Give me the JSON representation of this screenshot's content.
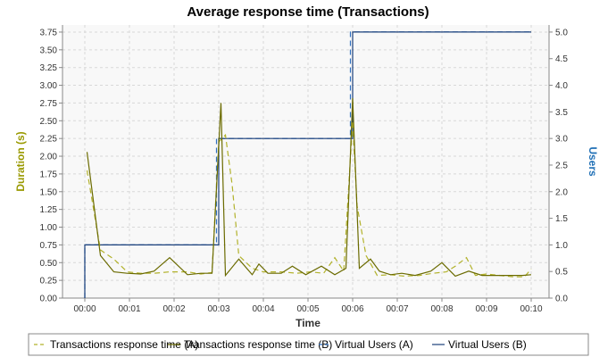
{
  "chart_data": {
    "type": "line",
    "title": "Average response time (Transactions)",
    "xlabel": "Time",
    "ylabel_left": "Duration (s)",
    "ylabel_right": "Users",
    "x_range_minutes": [
      0,
      10
    ],
    "x_ticks": [
      {
        "value": 0,
        "label": "00:00"
      },
      {
        "value": 1,
        "label": "00:01"
      },
      {
        "value": 2,
        "label": "00:02"
      },
      {
        "value": 3,
        "label": "00:03"
      },
      {
        "value": 4,
        "label": "00:04"
      },
      {
        "value": 5,
        "label": "00:05"
      },
      {
        "value": 6,
        "label": "00:06"
      },
      {
        "value": 7,
        "label": "00:07"
      },
      {
        "value": 8,
        "label": "00:08"
      },
      {
        "value": 9,
        "label": "00:09"
      },
      {
        "value": 10,
        "label": "00:10"
      }
    ],
    "y_left_range": [
      0,
      3.85
    ],
    "y_left_ticks": [
      {
        "value": 0,
        "label": "0.00"
      },
      {
        "value": 0.25,
        "label": "0.25"
      },
      {
        "value": 0.5,
        "label": "0.50"
      },
      {
        "value": 0.75,
        "label": "0.75"
      },
      {
        "value": 1.0,
        "label": "1.00"
      },
      {
        "value": 1.25,
        "label": "1.25"
      },
      {
        "value": 1.5,
        "label": "1.50"
      },
      {
        "value": 1.75,
        "label": "1.75"
      },
      {
        "value": 2.0,
        "label": "2.00"
      },
      {
        "value": 2.25,
        "label": "2.25"
      },
      {
        "value": 2.5,
        "label": "2.50"
      },
      {
        "value": 2.75,
        "label": "2.75"
      },
      {
        "value": 3.0,
        "label": "3.00"
      },
      {
        "value": 3.25,
        "label": "3.25"
      },
      {
        "value": 3.5,
        "label": "3.50"
      },
      {
        "value": 3.75,
        "label": "3.75"
      }
    ],
    "y_right_range": [
      0,
      5.133
    ],
    "y_right_ticks": [
      {
        "value": 0,
        "label": "0.0"
      },
      {
        "value": 0.5,
        "label": "0.5"
      },
      {
        "value": 1.0,
        "label": "1.0"
      },
      {
        "value": 1.5,
        "label": "1.5"
      },
      {
        "value": 2.0,
        "label": "2.0"
      },
      {
        "value": 2.5,
        "label": "2.5"
      },
      {
        "value": 3.0,
        "label": "3.0"
      },
      {
        "value": 3.5,
        "label": "3.5"
      },
      {
        "value": 4.0,
        "label": "4.0"
      },
      {
        "value": 4.5,
        "label": "4.5"
      },
      {
        "value": 5.0,
        "label": "5.0"
      }
    ],
    "grid": true,
    "legend_position": "bottom",
    "colors": {
      "left_axis": "#999900",
      "right_axis": "#1f6fb5",
      "plot_bg": "#f8f8f8",
      "grid": "#d8d8d8"
    },
    "series": [
      {
        "name": "Transactions response time (A)",
        "axis": "left",
        "style": "dashed",
        "color": "#b2b22b",
        "points": [
          [
            0.05,
            1.8
          ],
          [
            0.35,
            0.68
          ],
          [
            0.65,
            0.55
          ],
          [
            0.95,
            0.37
          ],
          [
            1.25,
            0.35
          ],
          [
            1.55,
            0.35
          ],
          [
            1.9,
            0.37
          ],
          [
            2.3,
            0.37
          ],
          [
            2.6,
            0.34
          ],
          [
            2.85,
            0.36
          ],
          [
            3.0,
            2.2
          ],
          [
            3.15,
            2.3
          ],
          [
            3.3,
            1.6
          ],
          [
            3.45,
            0.6
          ],
          [
            3.75,
            0.42
          ],
          [
            4.0,
            0.37
          ],
          [
            4.4,
            0.37
          ],
          [
            4.75,
            0.35
          ],
          [
            5.05,
            0.37
          ],
          [
            5.35,
            0.35
          ],
          [
            5.6,
            0.57
          ],
          [
            5.8,
            0.38
          ],
          [
            6.0,
            2.5
          ],
          [
            6.1,
            1.3
          ],
          [
            6.3,
            0.6
          ],
          [
            6.55,
            0.32
          ],
          [
            6.85,
            0.33
          ],
          [
            7.15,
            0.31
          ],
          [
            7.5,
            0.32
          ],
          [
            7.8,
            0.35
          ],
          [
            8.1,
            0.37
          ],
          [
            8.3,
            0.45
          ],
          [
            8.55,
            0.57
          ],
          [
            8.75,
            0.32
          ],
          [
            9.0,
            0.34
          ],
          [
            9.3,
            0.32
          ],
          [
            9.6,
            0.3
          ],
          [
            9.85,
            0.3
          ],
          [
            10.0,
            0.41
          ]
        ]
      },
      {
        "name": "Transactions response time (B)",
        "axis": "left",
        "style": "solid",
        "color": "#6b6b00",
        "points": [
          [
            0.05,
            2.06
          ],
          [
            0.35,
            0.6
          ],
          [
            0.65,
            0.37
          ],
          [
            0.95,
            0.35
          ],
          [
            1.25,
            0.34
          ],
          [
            1.55,
            0.38
          ],
          [
            1.9,
            0.57
          ],
          [
            2.3,
            0.33
          ],
          [
            2.6,
            0.35
          ],
          [
            2.85,
            0.35
          ],
          [
            3.05,
            2.75
          ],
          [
            3.15,
            0.32
          ],
          [
            3.45,
            0.55
          ],
          [
            3.75,
            0.33
          ],
          [
            3.9,
            0.48
          ],
          [
            4.1,
            0.35
          ],
          [
            4.4,
            0.35
          ],
          [
            4.65,
            0.45
          ],
          [
            4.95,
            0.33
          ],
          [
            5.3,
            0.45
          ],
          [
            5.6,
            0.33
          ],
          [
            5.85,
            0.42
          ],
          [
            6.0,
            2.82
          ],
          [
            6.15,
            0.42
          ],
          [
            6.4,
            0.55
          ],
          [
            6.6,
            0.38
          ],
          [
            6.85,
            0.33
          ],
          [
            7.1,
            0.35
          ],
          [
            7.4,
            0.32
          ],
          [
            7.75,
            0.38
          ],
          [
            8.0,
            0.5
          ],
          [
            8.3,
            0.31
          ],
          [
            8.6,
            0.38
          ],
          [
            8.9,
            0.32
          ],
          [
            9.2,
            0.32
          ],
          [
            9.5,
            0.32
          ],
          [
            9.8,
            0.32
          ],
          [
            10.0,
            0.33
          ]
        ]
      },
      {
        "name": "Virtual Users (A)",
        "axis": "right",
        "style": "dashed",
        "color": "#3070c0",
        "step_points": [
          [
            0.0,
            0
          ],
          [
            0.0,
            1
          ],
          [
            2.95,
            1
          ],
          [
            2.95,
            3
          ],
          [
            5.95,
            3
          ],
          [
            5.95,
            5
          ],
          [
            10.0,
            5
          ]
        ]
      },
      {
        "name": "Virtual Users (B)",
        "axis": "right",
        "style": "solid",
        "color": "#1a3f7a",
        "step_points": [
          [
            0.0,
            0
          ],
          [
            0.0,
            1
          ],
          [
            3.0,
            1
          ],
          [
            3.0,
            3
          ],
          [
            6.0,
            3
          ],
          [
            6.0,
            5
          ],
          [
            10.0,
            5
          ]
        ]
      }
    ]
  }
}
